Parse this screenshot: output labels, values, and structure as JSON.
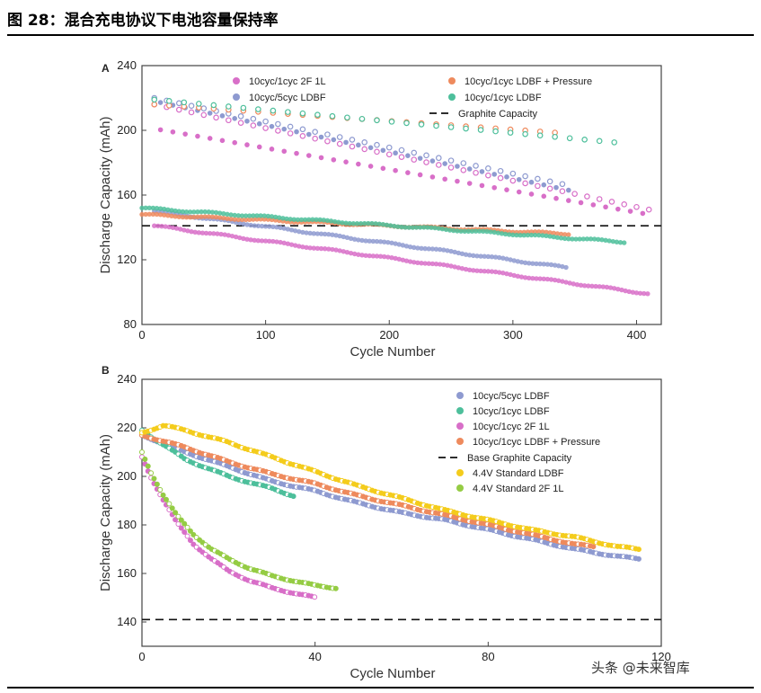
{
  "page": {
    "figure_title": "图 28：混合充电协议下电池容量保持率",
    "watermark": "头条 @未来智库"
  },
  "colors": {
    "pink": "#d86fc8",
    "blue": "#8e9ad0",
    "orange": "#ee8a5d",
    "teal": "#4dbf9b",
    "yellow": "#f4cc1c",
    "green": "#95cc44",
    "axis": "#444444"
  },
  "chart_data": [
    {
      "panel_label": "A",
      "type": "scatter",
      "xlabel": "Cycle Number",
      "ylabel": "Discharge Capacity (mAh)",
      "xlim": [
        0,
        420
      ],
      "ylim": [
        80,
        240
      ],
      "xticks": [
        0,
        100,
        200,
        300,
        400
      ],
      "yticks": [
        80,
        120,
        160,
        200,
        240
      ],
      "legend": [
        {
          "label": "10cyc/1cyc  2F 1L",
          "color": "pink",
          "kind": "dot"
        },
        {
          "label": "10cyc/5cyc LDBF",
          "color": "blue",
          "kind": "dot"
        },
        {
          "label": "10cyc/1cyc LDBF + Pressure",
          "color": "orange",
          "kind": "dot"
        },
        {
          "label": "10cyc/1cyc LDBF",
          "color": "teal",
          "kind": "dot"
        },
        {
          "label": "Graphite Capacity",
          "color": "black",
          "kind": "dash"
        }
      ],
      "reference_line": {
        "y": 141
      },
      "series": [
        {
          "color": "pink",
          "charge_x": [
            10,
            410
          ],
          "charge_y": [
            216,
            151
          ],
          "discharge_x": [
            10,
            410
          ],
          "discharge_y": [
            141,
            99
          ],
          "fast_step": 10,
          "slow_x": [
            10,
            410
          ],
          "slow_y": [
            201,
            148
          ]
        },
        {
          "color": "blue",
          "charge_x": [
            10,
            345
          ],
          "charge_y": [
            220,
            166
          ],
          "discharge_x": [
            10,
            345
          ],
          "discharge_y": [
            150,
            115
          ],
          "fast_step": 10,
          "slow_x": [
            10,
            345
          ],
          "slow_y": [
            218,
            163
          ]
        },
        {
          "color": "orange",
          "charge_x": [
            10,
            345
          ],
          "charge_y": [
            216,
            198
          ],
          "discharge_x": [
            0,
            345
          ],
          "discharge_y": [
            148,
            136
          ],
          "fast_step": 12
        },
        {
          "color": "teal",
          "charge_x": [
            10,
            390
          ],
          "charge_y": [
            219,
            192
          ],
          "discharge_x": [
            0,
            390
          ],
          "discharge_y": [
            152,
            131
          ],
          "fast_step": 12
        }
      ]
    },
    {
      "panel_label": "B",
      "type": "scatter",
      "xlabel": "Cycle Number",
      "ylabel": "Discharge Capacity (mAh)",
      "xlim": [
        0,
        120
      ],
      "ylim": [
        130,
        240
      ],
      "xticks": [
        0,
        40,
        80,
        120
      ],
      "yticks": [
        140,
        160,
        180,
        200,
        220,
        240
      ],
      "legend": [
        {
          "label": "10cyc/5cyc LDBF",
          "color": "blue",
          "kind": "dot"
        },
        {
          "label": "10cyc/1cyc LDBF",
          "color": "teal",
          "kind": "dot"
        },
        {
          "label": "10cyc/1cyc 2F 1L",
          "color": "pink",
          "kind": "dot"
        },
        {
          "label": "10cyc/1cyc LDBF + Pressure",
          "color": "orange",
          "kind": "dot"
        },
        {
          "label": "Base Graphite Capacity",
          "color": "black",
          "kind": "dash"
        },
        {
          "label": "4.4V Standard LDBF",
          "color": "yellow",
          "kind": "dot"
        },
        {
          "label": "4.4V Standard 2F 1L",
          "color": "green",
          "kind": "dot"
        }
      ],
      "reference_line": {
        "y": 141
      },
      "series": [
        {
          "color": "blue",
          "x": [
            0,
            10,
            20,
            30,
            40,
            50,
            60,
            70,
            80,
            90,
            100,
            110,
            115
          ],
          "y": [
            217,
            210,
            204,
            198,
            194,
            189,
            185,
            182,
            178,
            174,
            170,
            167,
            166
          ]
        },
        {
          "color": "teal",
          "x": [
            0,
            10,
            20,
            30,
            35
          ],
          "y": [
            219,
            207,
            200,
            195,
            192
          ]
        },
        {
          "color": "pink",
          "x": [
            0,
            2,
            5,
            8,
            12,
            16,
            20,
            25,
            30,
            35,
            40
          ],
          "y": [
            208,
            200,
            190,
            181,
            172,
            166,
            161,
            157,
            154,
            152,
            150
          ]
        },
        {
          "color": "orange",
          "x": [
            0,
            10,
            20,
            30,
            40,
            50,
            60,
            70,
            80,
            90,
            100,
            105
          ],
          "y": [
            217,
            212,
            206,
            201,
            197,
            192,
            188,
            184,
            180,
            176,
            172,
            171
          ]
        },
        {
          "color": "yellow",
          "x": [
            0,
            5,
            10,
            20,
            30,
            40,
            50,
            60,
            70,
            80,
            90,
            100,
            110,
            115
          ],
          "y": [
            218,
            221,
            219,
            214,
            208,
            202,
            196,
            191,
            186,
            182,
            178,
            175,
            171,
            170
          ]
        },
        {
          "color": "green",
          "x": [
            0,
            2,
            5,
            8,
            12,
            16,
            20,
            25,
            30,
            35,
            40,
            45
          ],
          "y": [
            210,
            202,
            192,
            184,
            176,
            170,
            166,
            162,
            159,
            157,
            155,
            154
          ]
        }
      ]
    }
  ]
}
